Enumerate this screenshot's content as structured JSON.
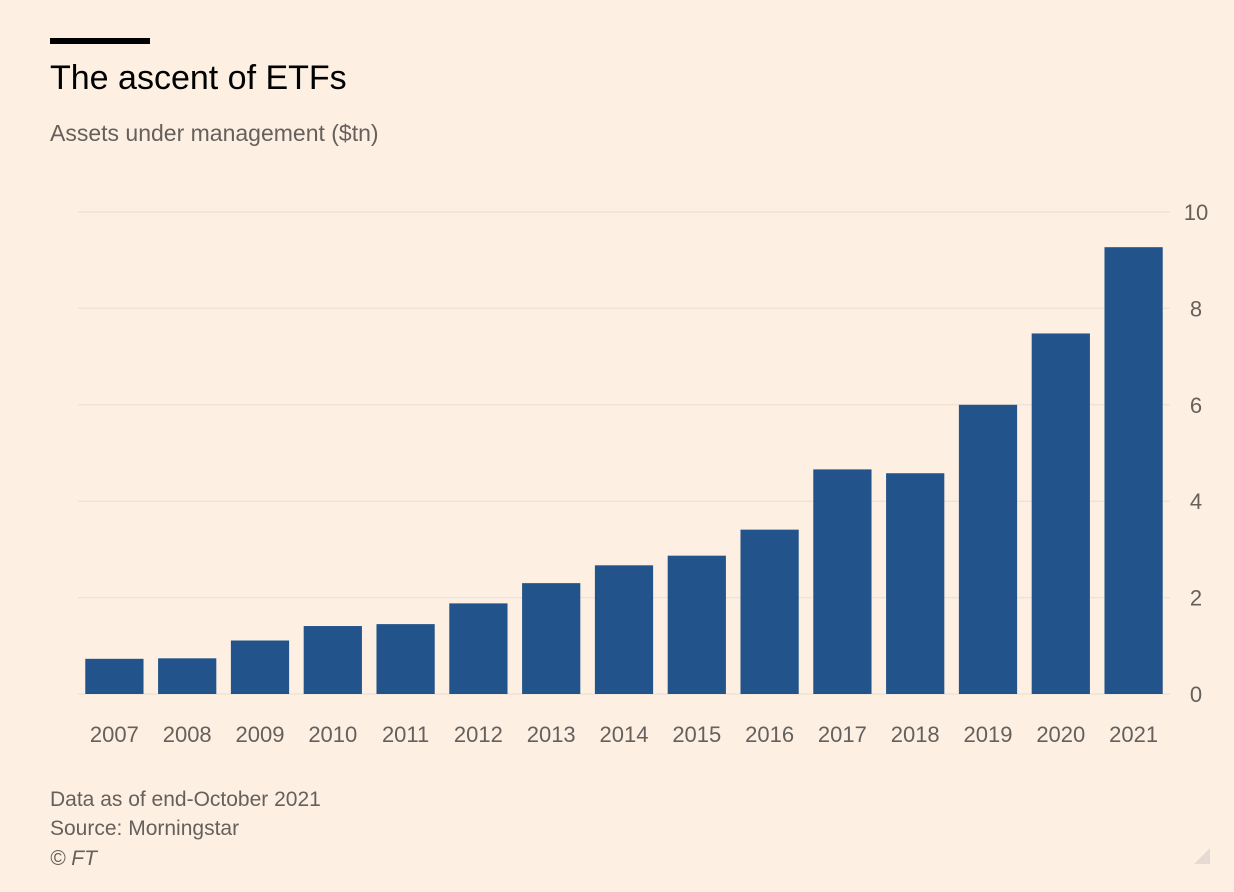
{
  "header": {
    "title": "The ascent of ETFs",
    "subtitle": "Assets under management ($tn)"
  },
  "footer": {
    "note": "Data as of end-October 2021",
    "source": "Source: Morningstar",
    "copyright": "© FT"
  },
  "colors": {
    "bar": "#22538a",
    "gridline": "#efe3d8",
    "background": "#fdf0e3",
    "tick_text": "#66605c"
  },
  "chart_data": {
    "type": "bar",
    "title": "The ascent of ETFs",
    "subtitle": "Assets under management ($tn)",
    "xlabel": "",
    "ylabel": "",
    "categories": [
      "2007",
      "2008",
      "2009",
      "2010",
      "2011",
      "2012",
      "2013",
      "2014",
      "2015",
      "2016",
      "2017",
      "2018",
      "2019",
      "2020",
      "2021"
    ],
    "values": [
      0.73,
      0.74,
      1.11,
      1.41,
      1.45,
      1.88,
      2.3,
      2.67,
      2.87,
      3.41,
      4.66,
      4.58,
      6.0,
      7.48,
      9.27
    ],
    "ylim": [
      0,
      10
    ],
    "yticks": [
      "0",
      "2",
      "4",
      "6",
      "8",
      "10"
    ],
    "y_axis_position": "right",
    "grid": true,
    "legend": "none"
  }
}
